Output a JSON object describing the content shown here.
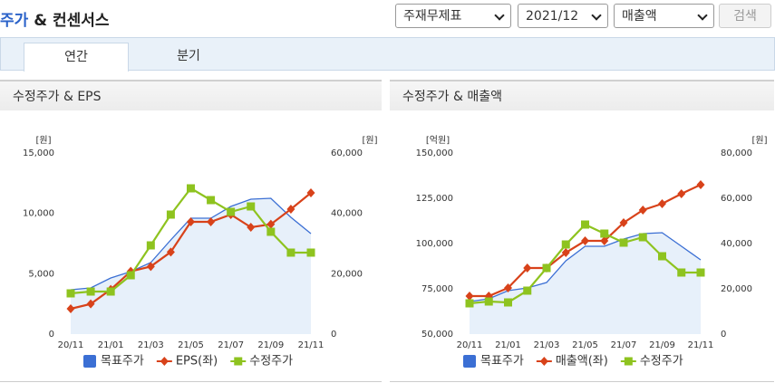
{
  "header": {
    "title_highlight": "주가",
    "title_rest": "& 컨센서스"
  },
  "controls": {
    "selects": [
      "주재무제표",
      "2021/12",
      "매출액"
    ],
    "button": "검색"
  },
  "tabs": [
    "연간",
    "분기"
  ],
  "chart_data": [
    {
      "type": "line",
      "title": "수정주가 & EPS",
      "categories": [
        "20/11",
        null,
        "21/01",
        null,
        "21/03",
        null,
        "21/05",
        null,
        "21/07",
        null,
        "21/09",
        null,
        "21/11"
      ],
      "y_label": "[원]",
      "y2_label": "[원]",
      "ylim": [
        0,
        15000
      ],
      "yticks": [
        0,
        {
          "value": 5000,
          "label": "5,000"
        },
        {
          "value": 10000,
          "label": "10,000"
        },
        {
          "value": 15000,
          "label": "15,000"
        }
      ],
      "y2lim": [
        0,
        60000
      ],
      "y2ticks": [
        0,
        {
          "value": 20000,
          "label": "20,000"
        },
        {
          "value": 40000,
          "label": "40,000"
        },
        {
          "value": 60000,
          "label": "60,000"
        }
      ],
      "series": [
        {
          "name": "목표주가",
          "color": "#3b6fd4",
          "axis": "y2",
          "marker": "area",
          "values": [
            14700,
            15300,
            18600,
            20700,
            23700,
            31200,
            38400,
            38400,
            42300,
            44700,
            45000,
            38700,
            33300
          ]
        },
        {
          "name": "EPS(좌)",
          "color": "#d8421a",
          "marker": "diamond",
          "values": [
            2100,
            2500,
            3700,
            5200,
            5600,
            6800,
            9300,
            9300,
            9900,
            8850,
            9100,
            10350,
            11700
          ]
        },
        {
          "name": "수정주가",
          "color": "#8ec31f",
          "axis": "y2",
          "marker": "square",
          "values": [
            13500,
            14100,
            14100,
            19500,
            29400,
            39600,
            48300,
            44400,
            40500,
            42300,
            33900,
            27000,
            27000
          ]
        }
      ]
    },
    {
      "type": "line",
      "title": "수정주가 & 매출액",
      "categories": [
        "20/11",
        null,
        "21/01",
        null,
        "21/03",
        null,
        "21/05",
        null,
        "21/07",
        null,
        "21/09",
        null,
        "21/11"
      ],
      "y_label": "[억원]",
      "y2_label": "[원]",
      "ylim": [
        50000,
        150000
      ],
      "yticks": [
        {
          "value": 50000,
          "label": "50,000"
        },
        {
          "value": 75000,
          "label": "75,000"
        },
        {
          "value": 100000,
          "label": "100,000"
        },
        {
          "value": 125000,
          "label": "125,000"
        },
        {
          "value": 150000,
          "label": "150,000"
        }
      ],
      "y2lim": [
        0,
        80000
      ],
      "y2ticks": [
        0,
        {
          "value": 20000,
          "label": "20,000"
        },
        {
          "value": 40000,
          "label": "40,000"
        },
        {
          "value": 60000,
          "label": "60,000"
        },
        {
          "value": 80000,
          "label": "80,000"
        }
      ],
      "series": [
        {
          "name": "목표주가",
          "color": "#3b6fd4",
          "axis": "y2",
          "marker": "area",
          "values": [
            14400,
            15600,
            19200,
            20400,
            22800,
            32400,
            38800,
            38800,
            42000,
            44400,
            44800,
            38800,
            32800
          ]
        },
        {
          "name": "매출액(좌)",
          "color": "#d8421a",
          "marker": "diamond",
          "values": [
            71000,
            71000,
            75500,
            86500,
            86500,
            95000,
            101500,
            101500,
            111500,
            118500,
            122000,
            127500,
            132500
          ]
        },
        {
          "name": "수정주가",
          "color": "#8ec31f",
          "axis": "y2",
          "marker": "square",
          "values": [
            13600,
            14400,
            14000,
            19200,
            29200,
            39600,
            48400,
            44400,
            40400,
            42800,
            34400,
            27200,
            27200
          ]
        }
      ]
    }
  ]
}
